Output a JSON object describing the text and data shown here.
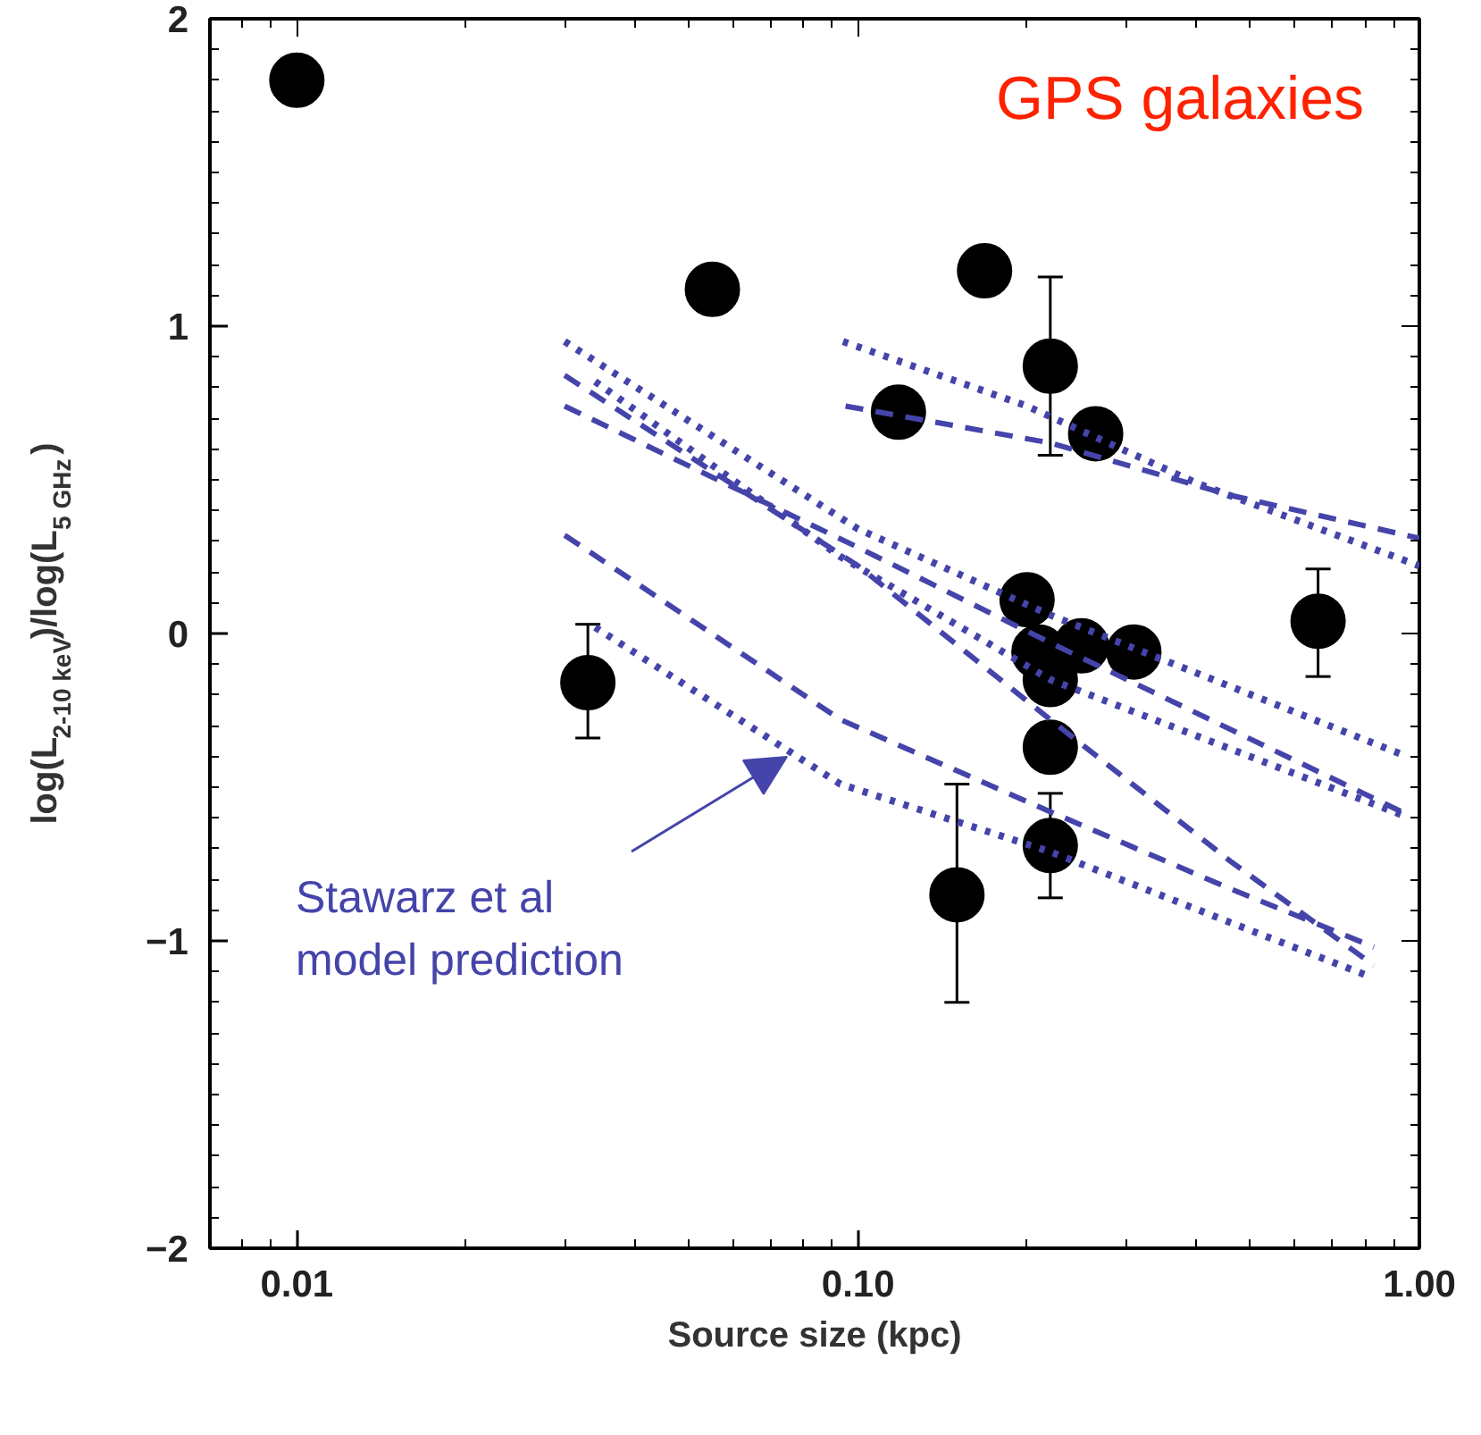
{
  "chart_data": {
    "type": "scatter",
    "xlabel": "Source size (kpc)",
    "ylabel": "log(L$_{2-10 keV}$)/log(L$_{5 GHz}$)",
    "log": "x",
    "xlim": [
      0.007,
      1.0
    ],
    "ylim": [
      -2,
      2
    ],
    "xticks": [
      {
        "value": 0.01,
        "label": "0.01"
      },
      {
        "value": 0.1,
        "label": "0.10"
      },
      {
        "value": 1,
        "label": "1.00"
      }
    ],
    "yticks": [
      -2,
      -1,
      0,
      1,
      2
    ],
    "annotations": [
      "GPS galaxies",
      "Stawarz et al\nmodel prediction"
    ],
    "series": [
      {
        "marker": "circle",
        "color": "#000000",
        "x": [
          0.01,
          0.033,
          0.055,
          0.168,
          0.22,
          0.118,
          0.265,
          0.2,
          0.21,
          0.22,
          0.25,
          0.31,
          0.22,
          0.22,
          0.15,
          0.66
        ],
        "values": [
          1.8,
          -0.16,
          1.12,
          1.18,
          0.87,
          0.72,
          0.65,
          0.11,
          -0.06,
          -0.15,
          -0.04,
          -0.06,
          -0.37,
          -0.69,
          -0.85,
          0.04
        ],
        "errors": [
          null,
          [
            -0.34,
            0.03
          ],
          null,
          null,
          [
            0.58,
            1.16
          ],
          null,
          null,
          null,
          null,
          null,
          null,
          null,
          null,
          [
            -0.86,
            -0.52
          ],
          [
            -1.2,
            -0.49
          ],
          [
            -0.14,
            0.21
          ]
        ]
      },
      {
        "type": "line",
        "line_style": "dotted",
        "color": "#4444aa",
        "x": [
          0.094,
          0.2,
          0.4,
          1.0
        ],
        "values": [
          0.95,
          0.74,
          0.49,
          0.22
        ]
      },
      {
        "type": "line",
        "line_style": "dashed",
        "color": "#4444aa",
        "x": [
          0.095,
          0.22,
          0.46,
          1.0
        ],
        "values": [
          0.74,
          0.62,
          0.45,
          0.31
        ]
      },
      {
        "type": "line",
        "line_style": "dotted",
        "color": "#4444aa",
        "x": [
          0.03,
          0.1,
          0.22,
          0.95
        ],
        "values": [
          0.95,
          0.34,
          0.06,
          -0.4
        ]
      },
      {
        "type": "line",
        "line_style": "dotted",
        "color": "#4444aa",
        "x": [
          0.034,
          0.093,
          0.22,
          0.93
        ],
        "values": [
          0.82,
          0.25,
          -0.15,
          -0.59
        ]
      },
      {
        "type": "line",
        "line_style": "dashed",
        "color": "#4444aa",
        "x": [
          0.03,
          0.1,
          0.22,
          0.46,
          0.83
        ],
        "values": [
          0.84,
          0.22,
          -0.28,
          -0.74,
          -1.08
        ]
      },
      {
        "type": "line",
        "line_style": "dashed",
        "color": "#4444aa",
        "x": [
          0.03,
          0.1,
          0.22,
          0.93
        ],
        "values": [
          0.74,
          0.28,
          -0.03,
          -0.58
        ]
      },
      {
        "type": "line",
        "line_style": "dashed",
        "color": "#4444aa",
        "x": [
          0.03,
          0.093,
          0.22,
          0.46,
          0.83
        ],
        "values": [
          0.32,
          -0.28,
          -0.58,
          -0.83,
          -1.02
        ]
      },
      {
        "type": "line",
        "line_style": "dotted",
        "color": "#4444aa",
        "x": [
          0.034,
          0.093,
          0.22,
          0.46,
          0.8
        ],
        "values": [
          0.02,
          -0.49,
          -0.71,
          -0.94,
          -1.11
        ]
      }
    ]
  }
}
